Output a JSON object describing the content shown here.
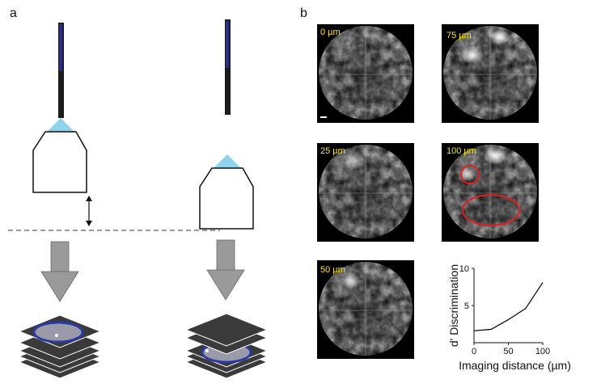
{
  "panels": {
    "a": {
      "letter": "a"
    },
    "b": {
      "letter": "b",
      "images": [
        {
          "label": "0 µm"
        },
        {
          "label": "75 µm"
        },
        {
          "label": "25 µm"
        },
        {
          "label": "100 µm"
        },
        {
          "label": "50 µm"
        }
      ]
    }
  },
  "colors": {
    "fiber": "#1c1c1c",
    "fiber_highlight": "#2a2f8f",
    "lens": "#8fd3ef",
    "arrow": "#9a9a9a",
    "plane": "#3a3a3a",
    "focus_ring": "#2b3aa0",
    "roi": "#e02020",
    "label": "#ffeb00"
  },
  "chart_data": {
    "type": "line",
    "xlabel": "Imaging distance (µm)",
    "ylabel": "d' Discrimination",
    "xlim": [
      0,
      100
    ],
    "ylim": [
      0,
      10
    ],
    "xticks": [
      "0",
      "50",
      "100"
    ],
    "yticks": [
      "5",
      "10"
    ],
    "series": [
      {
        "x": [
          0,
          25,
          50,
          75,
          100
        ],
        "y": [
          1.6,
          1.8,
          3.1,
          4.6,
          8.1
        ]
      }
    ]
  }
}
